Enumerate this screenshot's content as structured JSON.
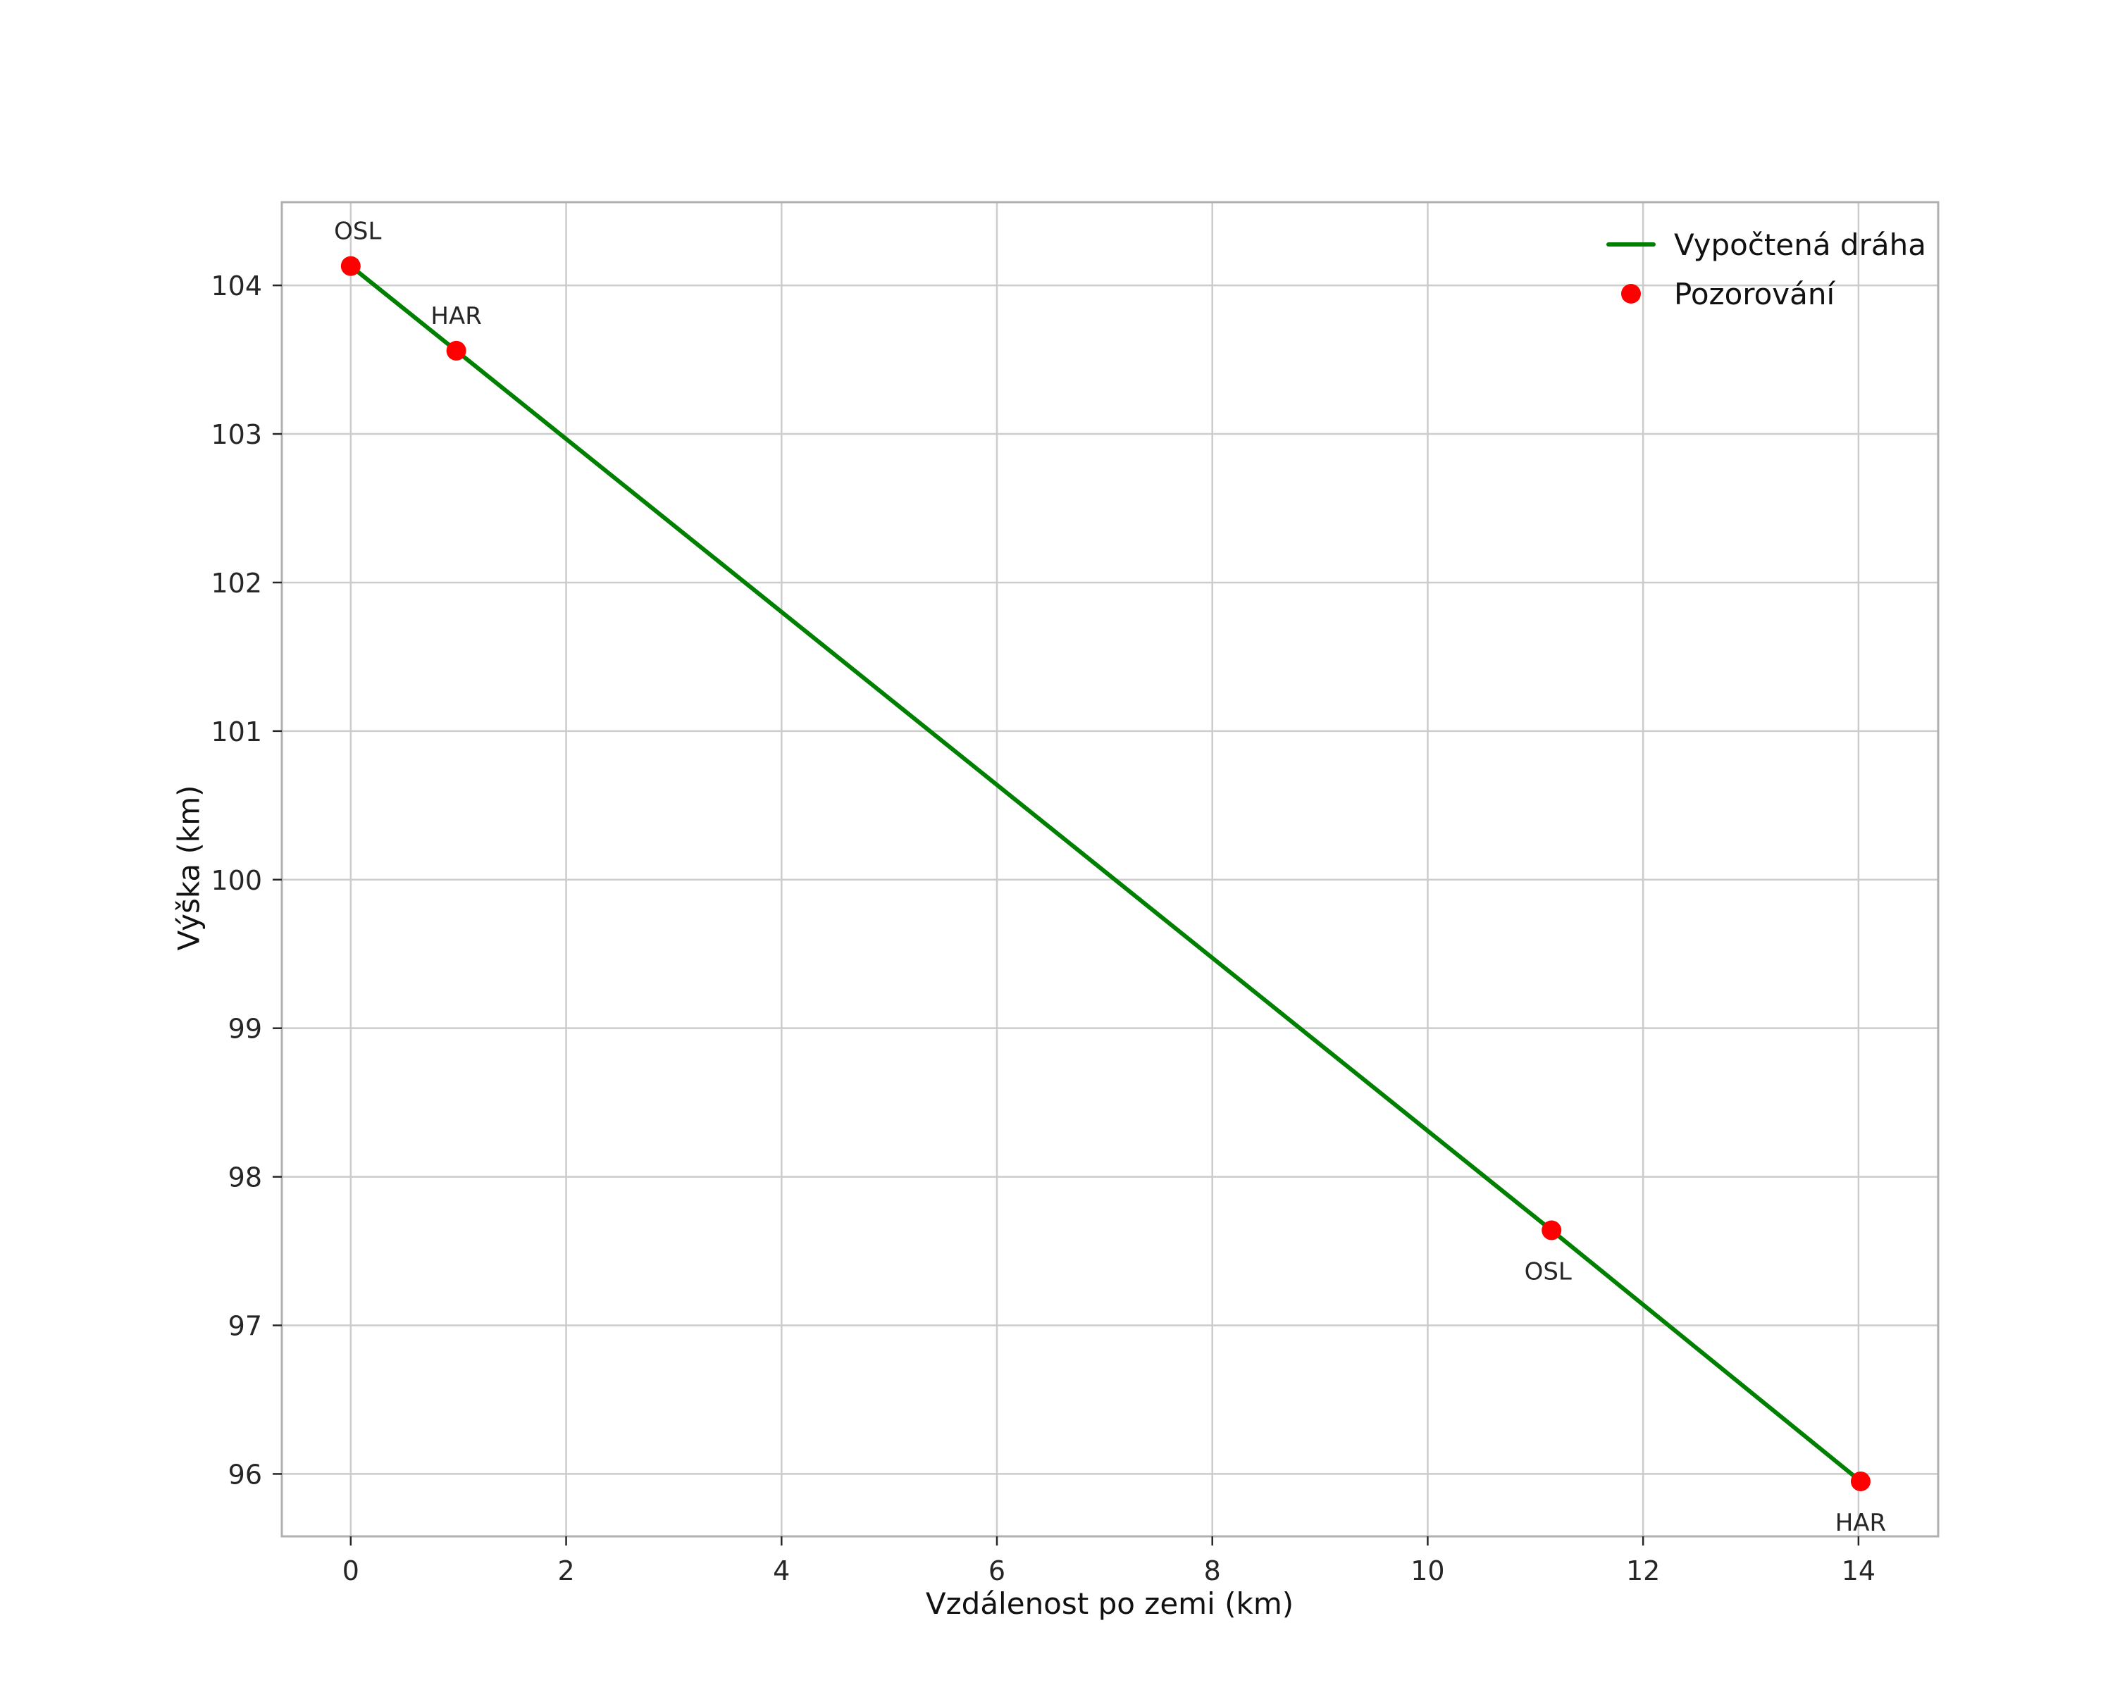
{
  "chart_data": {
    "type": "line",
    "title": "",
    "xlabel": "Vzdálenost po zemi (km)",
    "ylabel": "Výška (km)",
    "xlim": [
      -0.64,
      14.74
    ],
    "ylim": [
      95.58,
      104.56
    ],
    "xticks": [
      0,
      2,
      4,
      6,
      8,
      10,
      12,
      14
    ],
    "yticks": [
      96,
      97,
      98,
      99,
      100,
      101,
      102,
      103,
      104
    ],
    "grid": true,
    "style": {
      "background": "#ffffff",
      "grid_color": "#cccccc",
      "spine_color": "#b0b0b0",
      "tick_color": "#262626",
      "line_color": "#008000",
      "marker_color": "#ff0000"
    },
    "legend": {
      "position": "top-right",
      "entries": [
        {
          "label": "Vypočtená dráha",
          "type": "line",
          "color": "#008000"
        },
        {
          "label": "Pozorování",
          "type": "marker",
          "color": "#ff0000"
        }
      ]
    },
    "series": [
      {
        "name": "Vypočtená dráha",
        "type": "line",
        "color": "#008000",
        "x": [
          0.0,
          0.98,
          11.15,
          14.02
        ],
        "y": [
          104.13,
          103.56,
          97.64,
          95.95
        ]
      },
      {
        "name": "Pozorování",
        "type": "scatter",
        "color": "#ff0000",
        "points": [
          {
            "x": 0.0,
            "y": 104.13,
            "label": "OSL",
            "label_pos": "above",
            "label_dx": 10
          },
          {
            "x": 0.98,
            "y": 103.56,
            "label": "HAR",
            "label_pos": "above",
            "label_dx": 0
          },
          {
            "x": 11.15,
            "y": 97.64,
            "label": "OSL",
            "label_pos": "below",
            "label_dx": -5
          },
          {
            "x": 14.02,
            "y": 95.95,
            "label": "HAR",
            "label_pos": "below",
            "label_dx": 0
          }
        ]
      }
    ]
  }
}
